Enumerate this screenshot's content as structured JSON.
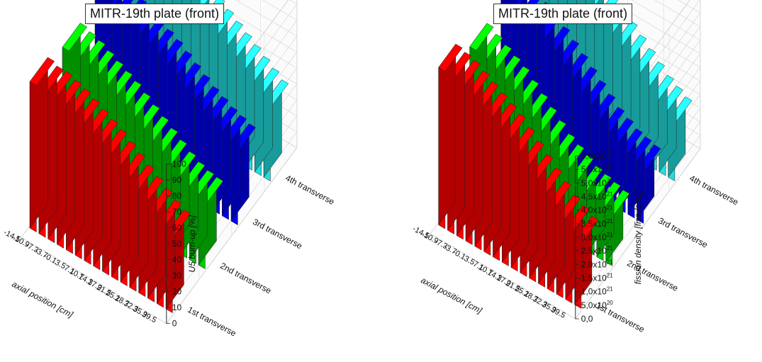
{
  "chart_data": [
    {
      "type": "bar",
      "subtype": "3d-grouped-bar",
      "title": "MITR-19th plate (front)",
      "xlabel": "axial position [cm]",
      "ylabel": "",
      "zlabel": "U5 burn-up [%]",
      "categories": [
        "-14.5",
        "-10.9",
        "-7.3",
        "-3.7",
        "-0.1",
        "3.5",
        "7.1",
        "10.7",
        "14.3",
        "17.9",
        "21.5",
        "25.1",
        "28.7",
        "32.3",
        "35.9",
        "39.5"
      ],
      "zlim": [
        0,
        100
      ],
      "zticks": [
        "0",
        "10",
        "20",
        "30",
        "40",
        "50",
        "60",
        "70",
        "80",
        "90",
        "100"
      ],
      "grid": true,
      "series": [
        {
          "name": "1st transverse",
          "color": "#ff0000",
          "values": [
            92,
            90,
            90,
            88,
            86,
            83,
            80,
            77,
            74,
            70,
            66,
            62,
            58,
            54,
            50,
            47
          ]
        },
        {
          "name": "2nd transverse",
          "color": "#00cc00",
          "values": [
            86,
            84,
            82,
            79,
            76,
            73,
            70,
            66,
            62,
            58,
            54,
            50,
            46,
            43,
            41,
            40
          ]
        },
        {
          "name": "3rd transverse",
          "color": "#0000ee",
          "values": [
            90,
            88,
            86,
            84,
            81,
            78,
            75,
            72,
            68,
            64,
            60,
            56,
            53,
            50,
            48,
            46
          ]
        },
        {
          "name": "4th transverse",
          "color": "#22dddd",
          "values": [
            94,
            92,
            90,
            88,
            86,
            84,
            82,
            78,
            74,
            70,
            66,
            62,
            58,
            54,
            50,
            46
          ]
        }
      ]
    },
    {
      "type": "bar",
      "subtype": "3d-grouped-bar",
      "title": "MITR-19th plate (front)",
      "xlabel": "axial position [cm]",
      "ylabel": "",
      "zlabel": "fission density [fiss./cm3]",
      "categories": [
        "-14.5",
        "-10.9",
        "-7.3",
        "-3.7",
        "-0.1",
        "3.5",
        "7.1",
        "10.7",
        "14.3",
        "17.9",
        "21.5",
        "25.1",
        "28.7",
        "32.3",
        "35.9",
        "39.5"
      ],
      "zlim": [
        0,
        6e+21
      ],
      "zticks": [
        {
          "m": "0,0",
          "e": ""
        },
        {
          "m": "5,0x10",
          "e": "20"
        },
        {
          "m": "1,0x10",
          "e": "21"
        },
        {
          "m": "1,5x10",
          "e": "21"
        },
        {
          "m": "2,0x10",
          "e": "21"
        },
        {
          "m": "2,5x10",
          "e": "21"
        },
        {
          "m": "3,0x10",
          "e": "21"
        },
        {
          "m": "3,5x10",
          "e": "21"
        },
        {
          "m": "4,0x10",
          "e": "21"
        },
        {
          "m": "4,5x10",
          "e": "21"
        },
        {
          "m": "5,0x10",
          "e": "21"
        },
        {
          "m": "5,5x10",
          "e": "21"
        },
        {
          "m": "6,0x10",
          "e": "21"
        }
      ],
      "grid": true,
      "series": [
        {
          "name": "1st transverse",
          "color": "#ff0000",
          "values": [
            5.8e+21,
            5.7e+21,
            5.6e+21,
            5.4e+21,
            5.2e+21,
            5e+21,
            4.8e+21,
            4.6e+21,
            4.3e+21,
            4e+21,
            3.7e+21,
            3.4e+21,
            3.1e+21,
            2.8e+21,
            2.6e+21,
            2.4e+21
          ]
        },
        {
          "name": "2nd transverse",
          "color": "#00cc00",
          "values": [
            5e+21,
            4.8e+21,
            4.6e+21,
            4.4e+21,
            4.2e+21,
            3.9e+21,
            3.6e+21,
            3.3e+21,
            3e+21,
            2.7e+21,
            2.5e+21,
            2.3e+21,
            2.1e+21,
            2e+21,
            1.9e+21,
            1.8e+21
          ]
        },
        {
          "name": "3rd transverse",
          "color": "#0000ee",
          "values": [
            5.4e+21,
            5.2e+21,
            5e+21,
            4.8e+21,
            4.6e+21,
            4.3e+21,
            4e+21,
            3.7e+21,
            3.4e+21,
            3.1e+21,
            2.8e+21,
            2.5e+21,
            2.3e+21,
            2.1e+21,
            2e+21,
            1.9e+21
          ]
        },
        {
          "name": "4th transverse",
          "color": "#22dddd",
          "values": [
            5.9e+21,
            5.7e+21,
            5.5e+21,
            5.3e+21,
            5.1e+21,
            4.9e+21,
            4.6e+21,
            4.3e+21,
            4e+21,
            3.7e+21,
            3.4e+21,
            3.1e+21,
            2.8e+21,
            2.5e+21,
            2.3e+21,
            2.1e+21
          ]
        }
      ]
    }
  ]
}
